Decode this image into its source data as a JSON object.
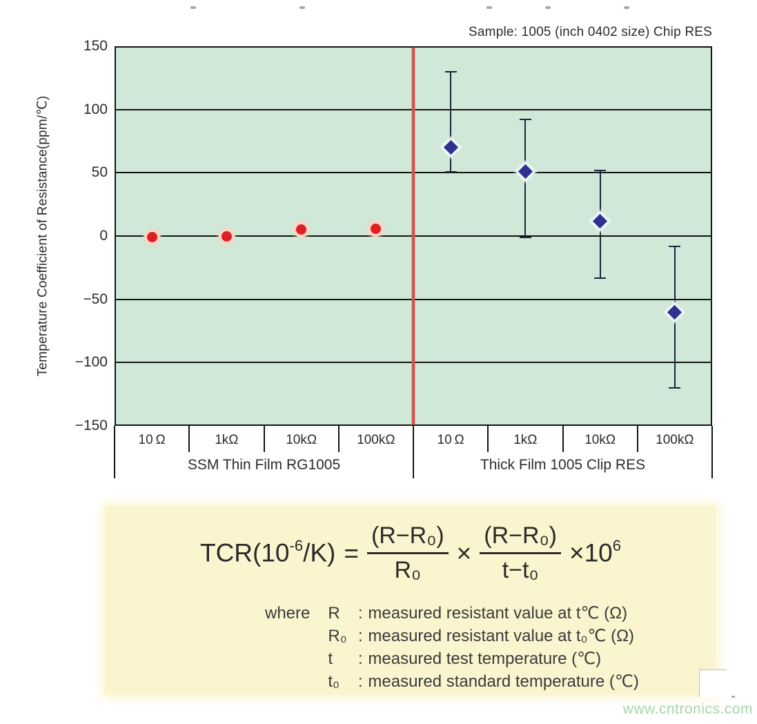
{
  "header": {
    "sample_label": "Sample: 1005 (inch 0402 size) Chip RES"
  },
  "watermark": "www.cntronics.com",
  "colors": {
    "plot_background": "#cfe8d7",
    "gridline": "#101510",
    "divider_red": "#d3544a",
    "thin_film_marker": "#df1f22",
    "thin_film_halo": "#f6d7c9",
    "thick_film_marker": "#2b3390",
    "error_bar": "#16253e",
    "formula_box_background": "#fbf5cf",
    "watermark_green": "#a6d6a6"
  },
  "chart_data": {
    "type": "scatter",
    "title": "Sample: 1005 (inch 0402 size) Chip RES",
    "xlabel": "",
    "ylabel": "Temperature Coefficient of Resistance(ppm/℃)",
    "ylim": [
      -150,
      150
    ],
    "ytick_interval": 50,
    "yticks": [
      "150",
      "100",
      "50",
      "0",
      "−50",
      "−100",
      "−150"
    ],
    "grid": true,
    "legend_position": "none",
    "categories": [
      "10 Ω",
      "1kΩ",
      "10kΩ",
      "100kΩ",
      "10 Ω",
      "1kΩ",
      "10kΩ",
      "100kΩ"
    ],
    "groups": [
      {
        "label": "SSM Thin Film RG1005"
      },
      {
        "label": "Thick Film 1005 Clip RES"
      }
    ],
    "divider_between_groups": true,
    "series": [
      {
        "name": "SSM Thin Film RG1005",
        "marker": "circle",
        "color": "#df1f22",
        "cap_width": 9,
        "points": [
          {
            "category": "10Ω",
            "value": -1,
            "low": -4,
            "high": 2
          },
          {
            "category": "1kΩ",
            "value": 0,
            "low": -2,
            "high": 3
          },
          {
            "category": "10kΩ",
            "value": 5,
            "low": 0,
            "high": 8
          },
          {
            "category": "100kΩ",
            "value": 6,
            "low": 0,
            "high": 9
          }
        ]
      },
      {
        "name": "Thick Film 1005 Clip RES",
        "marker": "diamond",
        "color": "#2b3390",
        "cap_width": 17,
        "points": [
          {
            "category": "10Ω",
            "value": 70,
            "low": 51,
            "high": 130
          },
          {
            "category": "1kΩ",
            "value": 51,
            "low": -1,
            "high": 92
          },
          {
            "category": "10kΩ",
            "value": 12,
            "low": -33,
            "high": 52
          },
          {
            "category": "100kΩ",
            "value": -60,
            "low": -120,
            "high": -8
          }
        ]
      }
    ]
  },
  "formula": {
    "lhs_pre": "TCR(10",
    "lhs_exp": "-6",
    "lhs_post": "/K)",
    "equals": "=",
    "frac1_num": "(R−R₀)",
    "frac1_den": "R₀",
    "times": "×",
    "frac2_num": "(R−R₀)",
    "frac2_den": "t−t₀",
    "mult_pre": "×10",
    "mult_exp": "6",
    "where_label": "where",
    "where_lines": [
      {
        "term": "R",
        "sep": ":",
        "desc": "measured resistant value at t℃ (Ω)"
      },
      {
        "term": "R₀",
        "sep": ":",
        "desc": "measured resistant value at t₀℃ (Ω)"
      },
      {
        "term": "t",
        "sep": ":",
        "desc": "measured test temperature (℃)"
      },
      {
        "term": "t₀",
        "sep": ":",
        "desc": "measured standard temperature (℃)"
      }
    ]
  }
}
